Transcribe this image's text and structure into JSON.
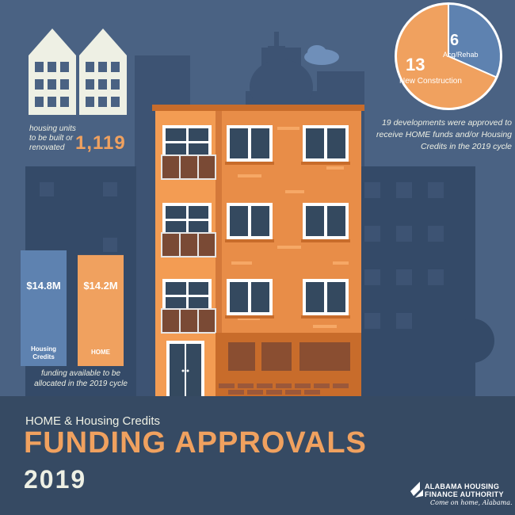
{
  "colors": {
    "background": "#4a6283",
    "skyline_dark": "#3d5373",
    "skyline_darker": "#344a68",
    "footer": "#364a63",
    "orange": "#f0a15f",
    "blue": "#5e82b0",
    "brick": "#e88d48",
    "cream": "#eef0e4"
  },
  "housing_units": {
    "label": "housing units to be built or renovated",
    "value": "1,119"
  },
  "developments": {
    "pie": [
      {
        "value": 13,
        "number": "13",
        "label": "New Construction",
        "color": "#f0a15f"
      },
      {
        "value": 6,
        "number": "6",
        "label": "Acq/Rehab",
        "color": "#5e82b0"
      }
    ],
    "description": "19 developments were approved to receive HOME funds and/or Housing Credits in the 2019 cycle"
  },
  "funding": {
    "bars": [
      {
        "value": 14.8,
        "value_label": "$14.8M",
        "label": "Housing Credits",
        "color": "#5e82b0"
      },
      {
        "value": 14.2,
        "value_label": "$14.2M",
        "label": "HOME",
        "color": "#f0a15f"
      }
    ],
    "note": "funding available to be allocated in the 2019 cycle"
  },
  "heading": {
    "subtitle": "HOME & Housing Credits",
    "title": "FUNDING APPROVALS",
    "year": "2019"
  },
  "logo": {
    "line1": "ALABAMA HOUSING",
    "line2": "FINANCE AUTHORITY",
    "tagline": "Come on home, Alabama."
  }
}
